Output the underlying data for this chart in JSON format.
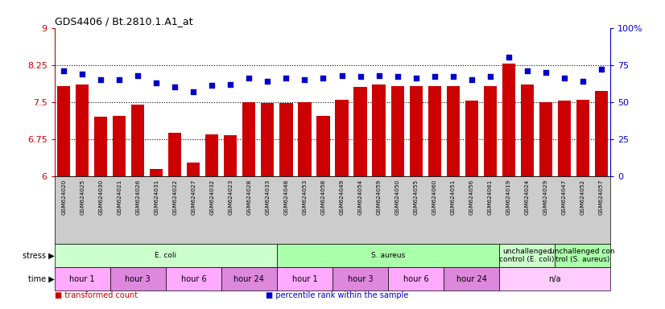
{
  "title": "GDS4406 / Bt.2810.1.A1_at",
  "samples": [
    "GSM624020",
    "GSM624025",
    "GSM624030",
    "GSM624021",
    "GSM624026",
    "GSM624031",
    "GSM624022",
    "GSM624027",
    "GSM624032",
    "GSM624023",
    "GSM624028",
    "GSM624033",
    "GSM624048",
    "GSM624053",
    "GSM624058",
    "GSM624049",
    "GSM624054",
    "GSM624059",
    "GSM624050",
    "GSM624055",
    "GSM624060",
    "GSM624051",
    "GSM624056",
    "GSM624061",
    "GSM624019",
    "GSM624024",
    "GSM624029",
    "GSM624047",
    "GSM624052",
    "GSM624057"
  ],
  "bar_values": [
    7.82,
    7.85,
    7.2,
    7.22,
    7.45,
    6.15,
    6.87,
    6.27,
    6.85,
    6.82,
    7.5,
    7.48,
    7.48,
    7.5,
    7.22,
    7.55,
    7.8,
    7.85,
    7.82,
    7.82,
    7.82,
    7.82,
    7.52,
    7.82,
    8.28,
    7.85,
    7.5,
    7.52,
    7.55,
    7.72
  ],
  "dot_values": [
    71,
    69,
    65,
    65,
    68,
    63,
    60,
    57,
    61,
    62,
    66,
    64,
    66,
    65,
    66,
    68,
    67,
    68,
    67,
    66,
    67,
    67,
    65,
    67,
    80,
    71,
    70,
    66,
    64,
    72
  ],
  "bar_color": "#cc0000",
  "dot_color": "#0000cc",
  "ylim_left": [
    6.0,
    9.0
  ],
  "ylim_right": [
    0,
    100
  ],
  "yticks_left": [
    6.0,
    6.75,
    7.5,
    8.25,
    9.0
  ],
  "ytick_labels_left": [
    "6",
    "6.75",
    "7.5",
    "8.25",
    "9"
  ],
  "yticks_right": [
    0,
    25,
    50,
    75,
    100
  ],
  "ytick_labels_right": [
    "0",
    "25",
    "50",
    "75",
    "100%"
  ],
  "hlines": [
    6.75,
    7.5,
    8.25
  ],
  "stress_groups": [
    {
      "label": "E. coli",
      "start": 0,
      "end": 12,
      "color": "#ccffcc"
    },
    {
      "label": "S. aureus",
      "start": 12,
      "end": 24,
      "color": "#aaffaa"
    },
    {
      "label": "unchallenged\ncontrol (E. coli)",
      "start": 24,
      "end": 27,
      "color": "#ccffcc"
    },
    {
      "label": "unchallenged con\ntrol (S. aureus)",
      "start": 27,
      "end": 30,
      "color": "#aaffaa"
    }
  ],
  "time_groups": [
    {
      "label": "hour 1",
      "start": 0,
      "end": 3,
      "color": "#ffaaff"
    },
    {
      "label": "hour 3",
      "start": 3,
      "end": 6,
      "color": "#dd88dd"
    },
    {
      "label": "hour 6",
      "start": 6,
      "end": 9,
      "color": "#ffaaff"
    },
    {
      "label": "hour 24",
      "start": 9,
      "end": 12,
      "color": "#dd88dd"
    },
    {
      "label": "hour 1",
      "start": 12,
      "end": 15,
      "color": "#ffaaff"
    },
    {
      "label": "hour 3",
      "start": 15,
      "end": 18,
      "color": "#dd88dd"
    },
    {
      "label": "hour 6",
      "start": 18,
      "end": 21,
      "color": "#ffaaff"
    },
    {
      "label": "hour 24",
      "start": 21,
      "end": 24,
      "color": "#dd88dd"
    },
    {
      "label": "n/a",
      "start": 24,
      "end": 30,
      "color": "#ffccff"
    }
  ],
  "xtick_bg": "#cccccc",
  "legend_items": [
    {
      "symbol": "■",
      "label": " transformed count",
      "color": "#cc0000"
    },
    {
      "symbol": "■",
      "label": " percentile rank within the sample",
      "color": "#0000cc"
    }
  ]
}
